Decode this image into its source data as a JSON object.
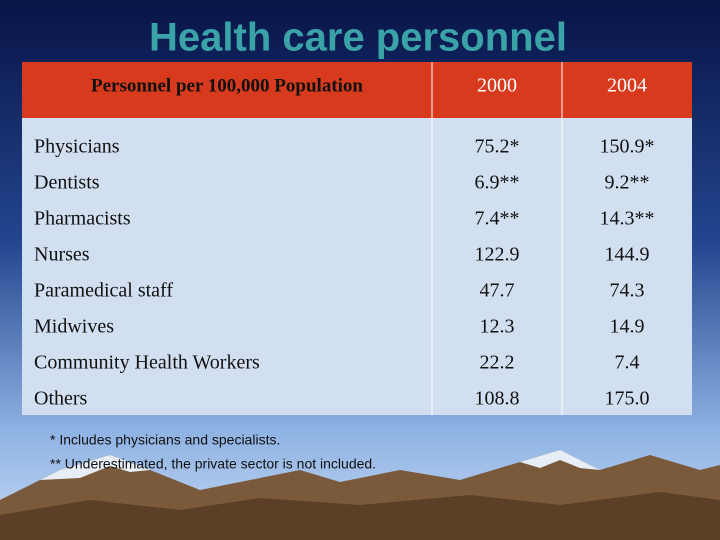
{
  "title": "Health care personnel",
  "table": {
    "header": [
      "Personnel per 100,000 Population",
      "2000",
      "2004"
    ],
    "rows": [
      [
        "Physicians",
        "75.2*",
        "150.9*"
      ],
      [
        "Dentists",
        "6.9**",
        "9.2**"
      ],
      [
        "Pharmacists",
        "7.4**",
        "14.3**"
      ],
      [
        "Nurses",
        "122.9",
        "144.9"
      ],
      [
        "Paramedical staff",
        "47.7",
        "74.3"
      ],
      [
        "Midwives",
        "12.3",
        "14.9"
      ],
      [
        "Community Health Workers",
        "22.2",
        "7.4"
      ],
      [
        "Others",
        "108.8",
        "175.0"
      ]
    ]
  },
  "footnotes": [
    "* Includes physicians and specialists.",
    "** Underestimated, the private sector is not included."
  ]
}
